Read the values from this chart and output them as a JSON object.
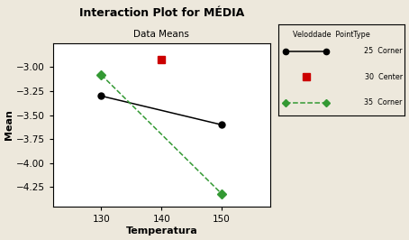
{
  "title": "Interaction Plot for MÉDIA",
  "subtitle": "Data Means",
  "xlabel": "Temperatura",
  "ylabel": "Mean",
  "bg_color": "#ede8dc",
  "plot_bg_color": "#ffffff",
  "x_values": [
    130,
    140,
    150
  ],
  "series": [
    {
      "label_vel": "25",
      "label_type": "Corner",
      "y_values": [
        -3.3,
        null,
        -3.6
      ],
      "color": "#000000",
      "linestyle": "-",
      "marker": "o"
    },
    {
      "label_vel": "30",
      "label_type": "Center",
      "y_values": [
        null,
        -2.92,
        null
      ],
      "color": "#cc0000",
      "linestyle": "none",
      "marker": "s"
    },
    {
      "label_vel": "35",
      "label_type": "Corner",
      "y_values": [
        -3.08,
        null,
        -4.32
      ],
      "color": "#339933",
      "linestyle": "--",
      "marker": "D"
    }
  ],
  "xlim": [
    122,
    158
  ],
  "ylim": [
    -4.45,
    -2.75
  ],
  "yticks": [
    -3.0,
    -3.25,
    -3.5,
    -3.75,
    -4.0,
    -4.25
  ],
  "xticks": [
    130,
    140,
    150
  ]
}
